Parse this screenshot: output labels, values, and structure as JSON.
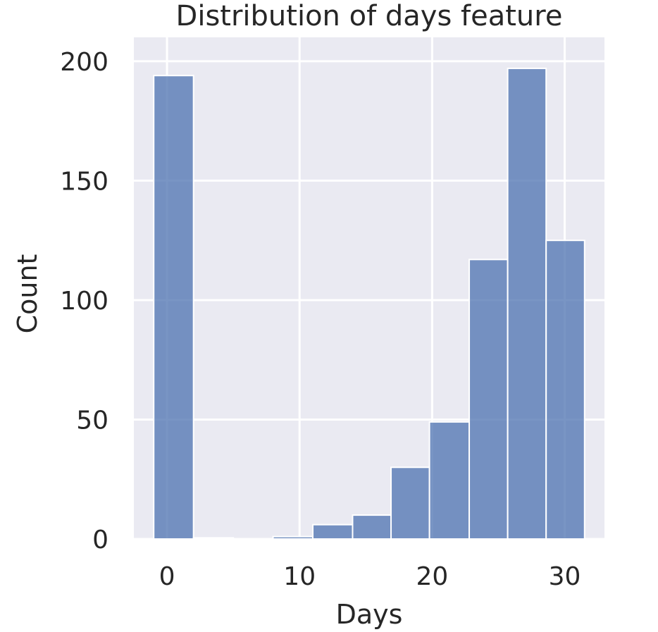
{
  "chart_data": {
    "type": "bar",
    "title": "Distribution of days feature",
    "xlabel": "Days",
    "ylabel": "Count",
    "xlim": [
      -2.5,
      33
    ],
    "ylim": [
      0,
      210
    ],
    "xticks": [
      0,
      10,
      20,
      30
    ],
    "yticks": [
      0,
      50,
      100,
      150,
      200
    ],
    "grid": true,
    "bar_color": "#4c72b0",
    "background_color": "#eaeaf2",
    "grid_color": "#ffffff",
    "bins": [
      {
        "x0": -1,
        "x1": 2,
        "count": 194
      },
      {
        "x0": 2,
        "x1": 5,
        "count": 0.5
      },
      {
        "x0": 5,
        "x1": 8,
        "count": 0
      },
      {
        "x0": 8,
        "x1": 11,
        "count": 1
      },
      {
        "x0": 11,
        "x1": 14,
        "count": 6
      },
      {
        "x0": 14,
        "x1": 16.9,
        "count": 10
      },
      {
        "x0": 16.9,
        "x1": 19.8,
        "count": 30
      },
      {
        "x0": 19.8,
        "x1": 22.8,
        "count": 49
      },
      {
        "x0": 22.8,
        "x1": 25.7,
        "count": 117
      },
      {
        "x0": 25.7,
        "x1": 28.6,
        "count": 197
      },
      {
        "x0": 28.6,
        "x1": 31.5,
        "count": 125
      }
    ]
  }
}
